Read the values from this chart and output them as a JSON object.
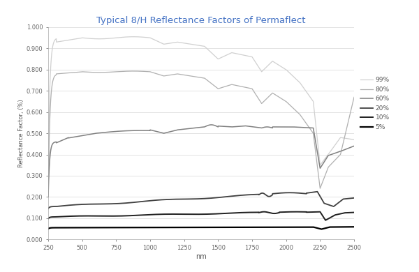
{
  "title": "Typical 8/H Reflectance Factors of Permaflect",
  "xlabel": "nm",
  "ylabel": "Reflectance Factor, (%)",
  "xlim": [
    250,
    2500
  ],
  "ylim": [
    0.0,
    1.0
  ],
  "ytick_vals": [
    0.0,
    0.1,
    0.2,
    0.3,
    0.4,
    0.5,
    0.6,
    0.7,
    0.8,
    0.9,
    1.0
  ],
  "ytick_labels": [
    "0.000",
    "0.100",
    "0.200",
    "0.300",
    "0.400",
    "0.500",
    "0.600",
    "0.700",
    "0.800",
    "0.900",
    "1.000"
  ],
  "xticks": [
    250,
    500,
    750,
    1000,
    1250,
    1500,
    1750,
    2000,
    2250,
    2500
  ],
  "series": [
    {
      "label": "99%",
      "color": "#d0d0d0",
      "lw": 0.9
    },
    {
      "label": "80%",
      "color": "#b0b0b0",
      "lw": 0.9
    },
    {
      "label": "60%",
      "color": "#808080",
      "lw": 1.1
    },
    {
      "label": "20%",
      "color": "#404040",
      "lw": 1.3
    },
    {
      "label": "10%",
      "color": "#202020",
      "lw": 1.4
    },
    {
      "label": "5%",
      "color": "#000000",
      "lw": 1.6
    }
  ],
  "background_color": "#ffffff",
  "grid_color": "#d8d8d8",
  "title_color": "#4472c4",
  "title_fontsize": 9.5
}
